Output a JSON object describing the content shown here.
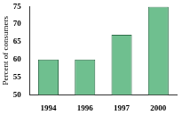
{
  "chart_data": {
    "type": "bar",
    "y_label": "Percent of consumers",
    "categories": [
      "1994",
      "1996",
      "1997",
      "2000"
    ],
    "values": [
      60,
      60,
      67,
      75
    ],
    "color": "#6fbf8f",
    "ylim": [
      50,
      75
    ],
    "yticks": [
      50,
      55,
      60,
      65,
      70,
      75
    ],
    "grid": false
  }
}
